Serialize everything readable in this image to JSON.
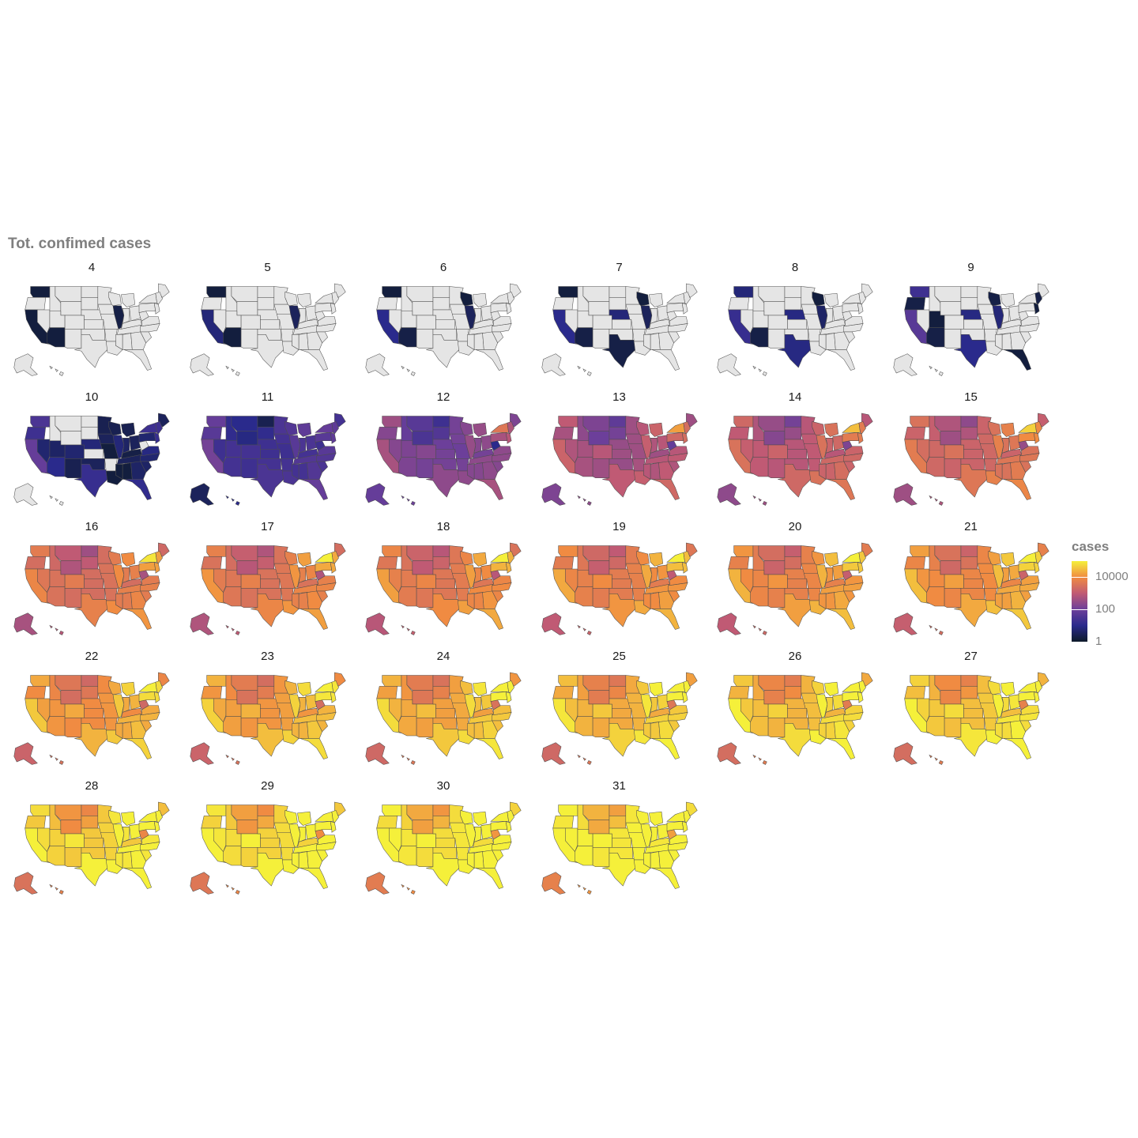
{
  "chart_data": {
    "type": "choropleth-small-multiples",
    "title": "Tot. confimed cases",
    "facet_labels": [
      "4",
      "5",
      "6",
      "7",
      "8",
      "9",
      "10",
      "11",
      "12",
      "13",
      "14",
      "15",
      "16",
      "17",
      "18",
      "19",
      "20",
      "21",
      "22",
      "23",
      "24",
      "25",
      "26",
      "27",
      "28",
      "29",
      "30",
      "31"
    ],
    "legend": {
      "title": "cases",
      "scale": "log10",
      "range": [
        1,
        100000
      ],
      "ticks": [
        {
          "value": 1,
          "label": "1"
        },
        {
          "value": 100,
          "label": "100"
        },
        {
          "value": 10000,
          "label": "10000"
        }
      ],
      "position": "right",
      "colormap": "plasma-like"
    },
    "grid": false,
    "missing_color": "#e5e5e5",
    "regions": [
      "WA",
      "OR",
      "CA",
      "NV",
      "ID",
      "MT",
      "WY",
      "UT",
      "AZ",
      "CO",
      "NM",
      "ND",
      "SD",
      "NE",
      "KS",
      "OK",
      "TX",
      "MN",
      "IA",
      "MO",
      "AR",
      "LA",
      "WI",
      "IL",
      "MI",
      "IN",
      "OH",
      "KY",
      "TN",
      "MS",
      "AL",
      "GA",
      "FL",
      "SC",
      "NC",
      "VA",
      "WV",
      "PA",
      "NY",
      "ME",
      "NEN",
      "MAT",
      "AK",
      "HI"
    ],
    "approx_cases_log10_by_facet": [
      [
        0.2,
        null,
        0.2,
        null,
        null,
        null,
        null,
        null,
        0.2,
        null,
        null,
        null,
        null,
        null,
        null,
        null,
        null,
        null,
        null,
        null,
        null,
        null,
        null,
        0.3,
        null,
        null,
        null,
        null,
        null,
        null,
        null,
        null,
        null,
        null,
        null,
        null,
        null,
        null,
        null,
        null,
        null,
        null,
        null,
        null
      ],
      [
        0.2,
        null,
        0.8,
        null,
        null,
        null,
        null,
        null,
        0.2,
        null,
        null,
        null,
        null,
        null,
        null,
        null,
        null,
        null,
        null,
        null,
        null,
        null,
        null,
        0.5,
        null,
        null,
        null,
        null,
        null,
        null,
        null,
        null,
        null,
        null,
        null,
        null,
        null,
        null,
        null,
        null,
        null,
        null,
        null,
        null
      ],
      [
        0.2,
        null,
        1.0,
        null,
        null,
        null,
        null,
        null,
        0.3,
        null,
        null,
        null,
        null,
        null,
        null,
        null,
        null,
        null,
        null,
        null,
        null,
        null,
        0.2,
        0.5,
        null,
        null,
        null,
        null,
        null,
        null,
        null,
        null,
        null,
        null,
        null,
        null,
        null,
        null,
        null,
        null,
        null,
        null,
        null,
        null
      ],
      [
        0.2,
        null,
        1.0,
        null,
        null,
        null,
        null,
        null,
        0.3,
        null,
        null,
        null,
        null,
        0.8,
        null,
        null,
        0.3,
        null,
        null,
        null,
        null,
        null,
        0.2,
        0.5,
        null,
        null,
        null,
        null,
        null,
        null,
        null,
        null,
        null,
        null,
        null,
        null,
        null,
        null,
        null,
        null,
        null,
        null,
        null,
        null
      ],
      [
        0.8,
        null,
        1.2,
        null,
        null,
        null,
        null,
        null,
        0.3,
        null,
        null,
        null,
        null,
        0.9,
        null,
        null,
        0.9,
        null,
        null,
        null,
        null,
        null,
        0.2,
        0.6,
        null,
        null,
        null,
        null,
        null,
        null,
        null,
        null,
        null,
        null,
        null,
        null,
        null,
        null,
        null,
        null,
        null,
        null,
        null,
        null
      ],
      [
        1.3,
        0.3,
        1.7,
        null,
        null,
        null,
        null,
        0.2,
        0.3,
        null,
        null,
        null,
        null,
        0.9,
        null,
        null,
        1.0,
        null,
        null,
        null,
        null,
        null,
        0.3,
        0.8,
        null,
        null,
        null,
        null,
        null,
        null,
        null,
        null,
        0.2,
        null,
        null,
        null,
        null,
        null,
        null,
        null,
        0.3,
        0.2,
        null,
        null
      ],
      [
        1.5,
        1.3,
        1.9,
        0.7,
        null,
        null,
        null,
        0.6,
        1.0,
        0.7,
        0.4,
        null,
        null,
        0.8,
        null,
        0.5,
        1.2,
        0.4,
        0.5,
        0.2,
        null,
        0.2,
        0.4,
        0.8,
        0.4,
        0.6,
        0.5,
        0.3,
        0.5,
        0.2,
        0.2,
        0.6,
        1.1,
        0.6,
        0.7,
        0.9,
        null,
        0.7,
        1.3,
        0.5,
        1.3,
        1.2,
        null,
        null
      ],
      [
        1.9,
        1.7,
        2.1,
        1.3,
        1.1,
        1.0,
        0.9,
        1.4,
        1.4,
        1.4,
        1.3,
        0.4,
        1.1,
        1.3,
        1.3,
        1.4,
        1.5,
        1.5,
        1.4,
        1.3,
        1.4,
        1.5,
        1.6,
        1.7,
        1.8,
        1.5,
        1.5,
        1.4,
        1.6,
        1.4,
        1.4,
        1.6,
        1.9,
        1.5,
        1.6,
        1.7,
        1.3,
        1.7,
        1.9,
        1.4,
        1.8,
        1.8,
        0.5,
        1.0
      ],
      [
        2.6,
        2.3,
        2.7,
        2.3,
        1.9,
        1.7,
        1.5,
        2.2,
        2.2,
        2.3,
        2.1,
        1.3,
        1.6,
        2.0,
        2.1,
        2.1,
        2.4,
        2.1,
        2.1,
        2.0,
        2.1,
        2.4,
        2.3,
        2.5,
        2.5,
        2.3,
        2.4,
        2.1,
        2.4,
        2.3,
        2.3,
        2.4,
        2.7,
        2.3,
        2.4,
        2.4,
        1.0,
        2.7,
        3.6,
        2.2,
        2.8,
        2.9,
        1.9,
        2.0
      ],
      [
        3.0,
        2.7,
        3.2,
        2.8,
        2.4,
        2.2,
        2.0,
        2.7,
        2.7,
        2.9,
        2.6,
        1.8,
        2.1,
        2.5,
        2.6,
        2.5,
        3.0,
        2.6,
        2.6,
        2.6,
        2.7,
        3.1,
        2.9,
        3.1,
        3.2,
        2.8,
        2.9,
        2.6,
        2.9,
        2.9,
        2.8,
        3.0,
        3.3,
        2.8,
        3.0,
        2.9,
        1.9,
        3.3,
        4.2,
        2.6,
        3.4,
        3.4,
        2.2,
        2.4
      ],
      [
        3.3,
        3.0,
        3.5,
        3.1,
        2.8,
        2.5,
        2.3,
        3.0,
        3.0,
        3.2,
        2.9,
        2.1,
        2.5,
        2.9,
        2.9,
        2.9,
        3.3,
        2.9,
        3.0,
        3.0,
        3.0,
        3.5,
        3.2,
        3.5,
        3.5,
        3.2,
        3.3,
        2.9,
        3.3,
        3.2,
        3.2,
        3.4,
        3.6,
        3.2,
        3.3,
        3.2,
        2.2,
        3.7,
        4.5,
        2.9,
        3.7,
        3.7,
        2.4,
        2.6
      ],
      [
        3.5,
        3.2,
        3.7,
        3.4,
        3.1,
        2.8,
        2.6,
        3.3,
        3.3,
        3.5,
        3.2,
        2.4,
        2.8,
        3.2,
        3.2,
        3.2,
        3.6,
        3.2,
        3.3,
        3.3,
        3.3,
        3.8,
        3.5,
        3.8,
        3.8,
        3.5,
        3.6,
        3.2,
        3.6,
        3.5,
        3.5,
        3.7,
        3.9,
        3.5,
        3.6,
        3.5,
        2.5,
        4.0,
        4.7,
        3.1,
        4.0,
        4.0,
        2.6,
        2.8
      ],
      [
        3.7,
        3.4,
        3.9,
        3.6,
        3.3,
        3.0,
        2.8,
        3.5,
        3.5,
        3.7,
        3.4,
        2.6,
        3.0,
        3.4,
        3.4,
        3.4,
        3.8,
        3.4,
        3.5,
        3.5,
        3.5,
        4.0,
        3.7,
        4.0,
        4.0,
        3.7,
        3.8,
        3.4,
        3.8,
        3.7,
        3.7,
        3.9,
        4.1,
        3.7,
        3.8,
        3.7,
        2.7,
        4.2,
        4.9,
        3.3,
        4.2,
        4.2,
        2.7,
        2.9
      ],
      [
        3.8,
        3.5,
        4.1,
        3.7,
        3.4,
        3.1,
        2.9,
        3.6,
        3.6,
        3.8,
        3.5,
        2.8,
        3.1,
        3.5,
        3.5,
        3.5,
        3.9,
        3.5,
        3.6,
        3.6,
        3.6,
        4.1,
        3.8,
        4.1,
        4.2,
        3.8,
        3.9,
        3.5,
        3.9,
        3.8,
        3.8,
        4.0,
        4.2,
        3.8,
        3.9,
        3.8,
        2.8,
        4.3,
        5.0,
        3.4,
        4.3,
        4.3,
        2.8,
        3.0
      ],
      [
        3.9,
        3.6,
        4.2,
        3.8,
        3.5,
        3.2,
        3.0,
        3.7,
        3.7,
        3.9,
        3.6,
        2.9,
        3.2,
        3.6,
        3.6,
        3.6,
        4.0,
        3.6,
        3.7,
        3.7,
        3.7,
        4.2,
        3.9,
        4.2,
        4.3,
        3.9,
        4.0,
        3.6,
        4.0,
        3.9,
        3.9,
        4.1,
        4.3,
        3.9,
        4.0,
        3.9,
        2.9,
        4.4,
        5.0,
        3.5,
        4.4,
        4.4,
        2.9,
        3.1
      ],
      [
        4.0,
        3.7,
        4.3,
        3.9,
        3.6,
        3.3,
        3.1,
        3.8,
        3.8,
        4.0,
        3.7,
        3.0,
        3.3,
        3.7,
        3.7,
        3.7,
        4.1,
        3.7,
        3.8,
        3.8,
        3.8,
        4.3,
        4.0,
        4.3,
        4.4,
        4.0,
        4.1,
        3.7,
        4.1,
        4.0,
        4.0,
        4.2,
        4.4,
        4.0,
        4.1,
        4.0,
        3.0,
        4.5,
        5.0,
        3.6,
        4.5,
        4.5,
        3.0,
        3.2
      ],
      [
        4.1,
        3.8,
        4.4,
        4.0,
        3.7,
        3.4,
        3.2,
        3.9,
        3.9,
        4.1,
        3.8,
        3.1,
        3.4,
        3.8,
        3.8,
        3.8,
        4.2,
        3.8,
        3.9,
        3.9,
        3.9,
        4.4,
        4.1,
        4.4,
        4.5,
        4.1,
        4.2,
        3.8,
        4.2,
        4.1,
        4.1,
        4.3,
        4.5,
        4.1,
        4.2,
        4.1,
        3.1,
        4.6,
        5.0,
        3.7,
        4.6,
        4.6,
        3.0,
        3.3
      ],
      [
        4.2,
        3.9,
        4.5,
        4.1,
        3.8,
        3.5,
        3.3,
        4.0,
        4.0,
        4.2,
        3.9,
        3.2,
        3.5,
        3.9,
        3.9,
        3.9,
        4.3,
        3.9,
        4.0,
        4.0,
        4.0,
        4.5,
        4.2,
        4.5,
        4.6,
        4.2,
        4.3,
        3.9,
        4.3,
        4.2,
        4.2,
        4.4,
        4.6,
        4.2,
        4.3,
        4.2,
        3.2,
        4.7,
        5.0,
        3.8,
        4.7,
        4.7,
        3.1,
        3.4
      ],
      [
        4.3,
        4.0,
        4.6,
        4.2,
        3.9,
        3.6,
        3.4,
        4.1,
        4.1,
        4.3,
        4.0,
        3.3,
        3.6,
        4.0,
        4.0,
        4.0,
        4.4,
        4.0,
        4.1,
        4.1,
        4.1,
        4.6,
        4.3,
        4.6,
        4.7,
        4.3,
        4.4,
        4.0,
        4.4,
        4.3,
        4.3,
        4.5,
        4.7,
        4.3,
        4.4,
        4.3,
        3.3,
        4.8,
        5.0,
        3.9,
        4.8,
        4.8,
        3.2,
        3.5
      ],
      [
        4.4,
        4.1,
        4.7,
        4.3,
        4.0,
        3.7,
        3.5,
        4.2,
        4.2,
        4.4,
        4.1,
        3.4,
        3.7,
        4.1,
        4.1,
        4.1,
        4.5,
        4.1,
        4.2,
        4.2,
        4.2,
        4.7,
        4.4,
        4.7,
        4.8,
        4.4,
        4.5,
        4.1,
        4.5,
        4.4,
        4.4,
        4.6,
        4.8,
        4.4,
        4.5,
        4.4,
        3.4,
        4.9,
        5.0,
        4.0,
        4.9,
        4.9,
        3.2,
        3.5
      ],
      [
        4.4,
        4.2,
        4.8,
        4.4,
        4.1,
        3.7,
        3.6,
        4.3,
        4.3,
        4.5,
        4.2,
        3.5,
        3.8,
        4.2,
        4.2,
        4.2,
        4.6,
        4.2,
        4.3,
        4.3,
        4.3,
        4.8,
        4.5,
        4.8,
        4.9,
        4.5,
        4.6,
        4.2,
        4.6,
        4.5,
        4.5,
        4.7,
        4.9,
        4.5,
        4.6,
        4.5,
        3.5,
        5.0,
        5.0,
        4.1,
        5.0,
        5.0,
        3.3,
        3.6
      ],
      [
        4.5,
        4.3,
        4.9,
        4.5,
        4.2,
        3.8,
        3.7,
        4.4,
        4.4,
        4.6,
        4.3,
        3.6,
        3.9,
        4.3,
        4.3,
        4.3,
        4.7,
        4.3,
        4.4,
        4.4,
        4.4,
        4.9,
        4.6,
        4.9,
        5.0,
        4.6,
        4.7,
        4.3,
        4.7,
        4.6,
        4.6,
        4.8,
        5.0,
        4.6,
        4.7,
        4.6,
        3.6,
        5.0,
        5.0,
        4.2,
        5.0,
        5.0,
        3.3,
        3.6
      ],
      [
        4.6,
        4.4,
        5.0,
        4.6,
        4.3,
        3.9,
        3.8,
        4.5,
        4.5,
        4.7,
        4.4,
        3.7,
        4.0,
        4.4,
        4.4,
        4.4,
        4.8,
        4.4,
        4.5,
        4.5,
        4.5,
        5.0,
        4.7,
        5.0,
        5.0,
        4.7,
        4.8,
        4.4,
        4.8,
        4.7,
        4.7,
        4.9,
        5.0,
        4.7,
        4.8,
        4.7,
        3.7,
        5.0,
        5.0,
        4.3,
        5.0,
        5.0,
        3.4,
        3.7
      ],
      [
        4.7,
        4.5,
        5.0,
        4.7,
        4.4,
        4.0,
        3.9,
        4.6,
        4.6,
        4.8,
        4.5,
        3.8,
        4.1,
        4.5,
        4.5,
        4.5,
        4.9,
        4.5,
        4.6,
        4.6,
        4.6,
        5.0,
        4.8,
        5.0,
        5.0,
        4.8,
        4.9,
        4.5,
        4.9,
        4.8,
        4.8,
        5.0,
        5.0,
        4.8,
        4.9,
        4.8,
        3.8,
        5.0,
        5.0,
        4.4,
        5.0,
        5.0,
        3.4,
        3.7
      ],
      [
        4.8,
        4.6,
        5.0,
        4.8,
        4.5,
        4.1,
        4.0,
        4.7,
        4.7,
        4.9,
        4.6,
        3.9,
        4.2,
        4.6,
        4.6,
        4.6,
        5.0,
        4.6,
        4.7,
        4.7,
        4.7,
        5.0,
        4.9,
        5.0,
        5.0,
        4.9,
        5.0,
        4.6,
        5.0,
        4.9,
        4.9,
        5.0,
        5.0,
        4.9,
        5.0,
        4.9,
        3.9,
        5.0,
        5.0,
        4.5,
        5.0,
        5.0,
        3.5,
        3.8
      ],
      [
        4.9,
        4.7,
        5.0,
        4.9,
        4.6,
        4.2,
        4.1,
        4.8,
        4.8,
        5.0,
        4.7,
        4.0,
        4.3,
        4.7,
        4.7,
        4.7,
        5.0,
        4.7,
        4.8,
        4.8,
        4.8,
        5.0,
        5.0,
        5.0,
        5.0,
        5.0,
        5.0,
        4.7,
        5.0,
        5.0,
        5.0,
        5.0,
        5.0,
        5.0,
        5.0,
        5.0,
        4.0,
        5.0,
        5.0,
        4.6,
        5.0,
        5.0,
        3.6,
        3.9
      ],
      [
        5.0,
        4.8,
        5.0,
        5.0,
        4.7,
        4.3,
        4.2,
        4.9,
        4.9,
        5.0,
        4.8,
        4.1,
        4.4,
        4.8,
        4.8,
        4.8,
        5.0,
        4.8,
        4.9,
        4.9,
        4.9,
        5.0,
        5.0,
        5.0,
        5.0,
        5.0,
        5.0,
        4.8,
        5.0,
        5.0,
        5.0,
        5.0,
        5.0,
        5.0,
        5.0,
        5.0,
        4.1,
        5.0,
        5.0,
        4.7,
        5.0,
        5.0,
        3.7,
        4.0
      ],
      [
        5.0,
        4.9,
        5.0,
        5.0,
        4.8,
        4.4,
        4.3,
        5.0,
        5.0,
        5.0,
        4.9,
        4.2,
        4.5,
        4.9,
        4.9,
        4.9,
        5.0,
        4.9,
        5.0,
        5.0,
        5.0,
        5.0,
        5.0,
        5.0,
        5.0,
        5.0,
        5.0,
        4.9,
        5.0,
        5.0,
        5.0,
        5.0,
        5.0,
        5.0,
        5.0,
        5.0,
        4.2,
        5.0,
        5.0,
        4.8,
        5.0,
        5.0,
        3.8,
        4.1
      ]
    ]
  }
}
